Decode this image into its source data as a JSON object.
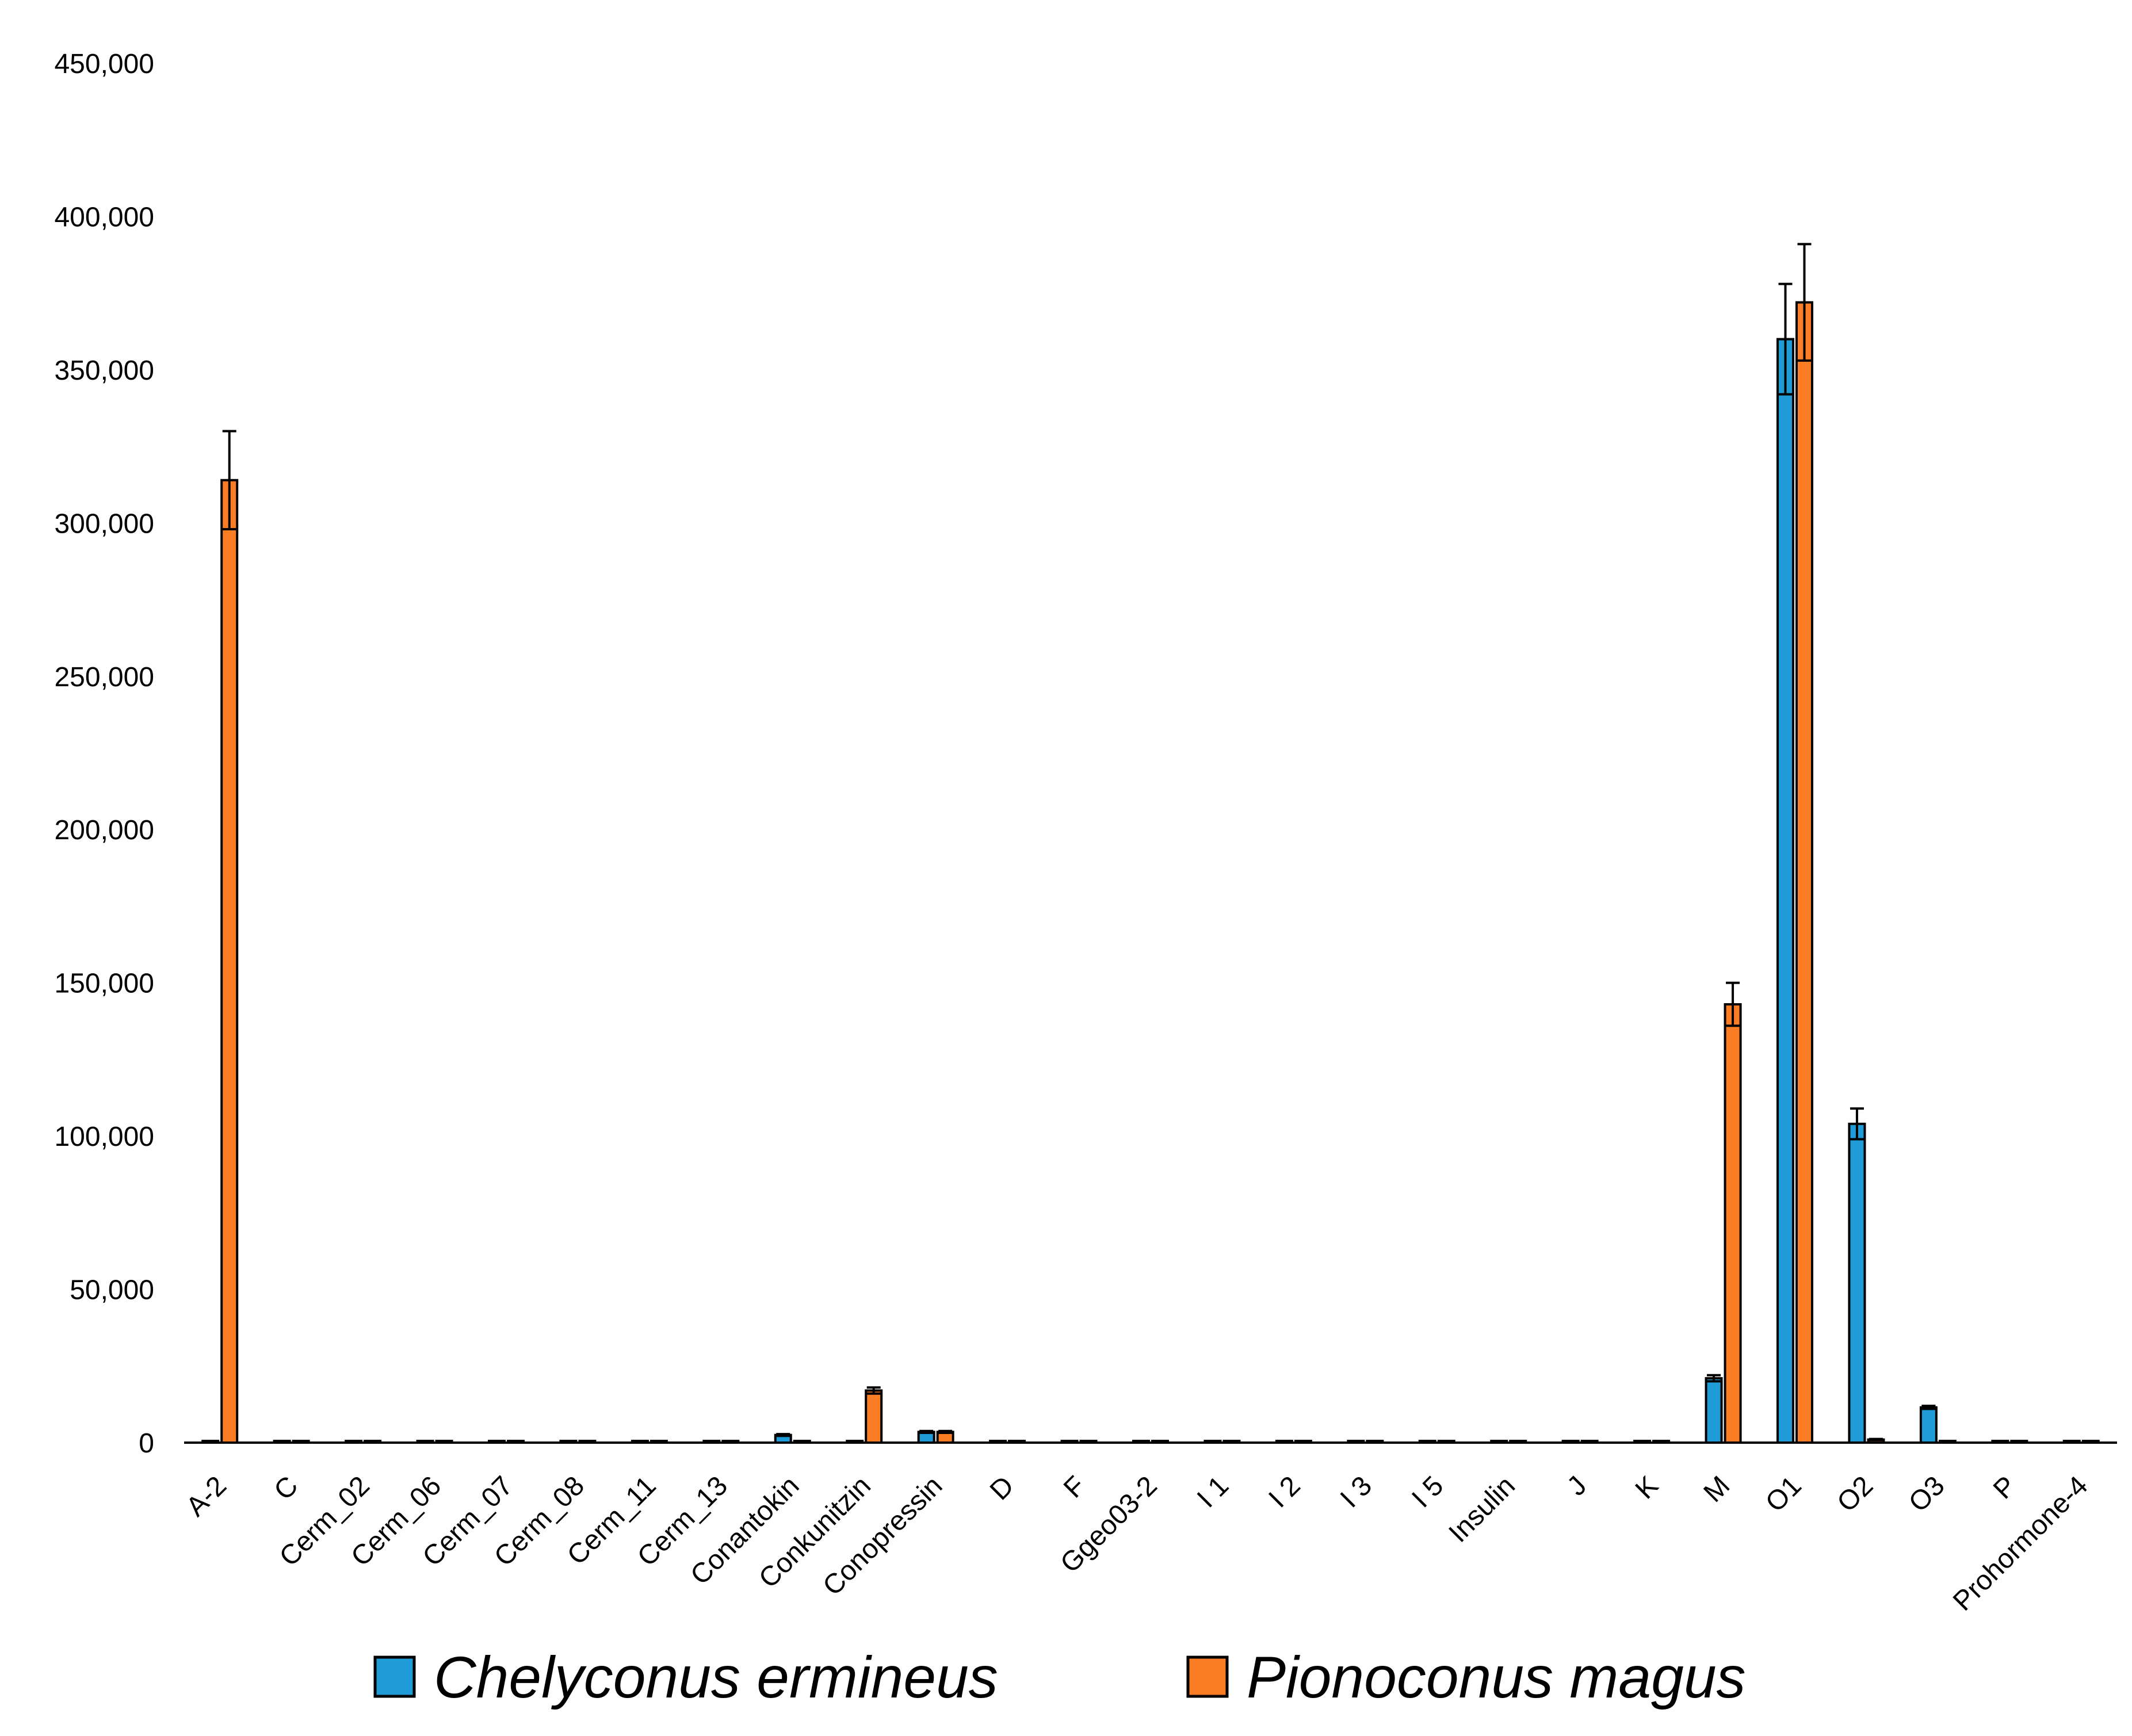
{
  "chart_data": {
    "type": "bar",
    "categories": [
      "A-2",
      "C",
      "Cerm_02",
      "Cerm_06",
      "Cerm_07",
      "Cerm_08",
      "Cerm_11",
      "Cerm_13",
      "Conantokin",
      "Conkunitzin",
      "Conopressin",
      "D",
      "F",
      "Ggeo03-2",
      "I 1",
      "I 2",
      "I 3",
      "I 5",
      "Insulin",
      "J",
      "K",
      "M",
      "O1",
      "O2",
      "O3",
      "P",
      "Prohormone-4"
    ],
    "series": [
      {
        "name": "Chelyconus ermineus",
        "color": "#1f9bd7",
        "values": [
          0,
          0,
          0,
          0,
          0,
          0,
          200,
          0,
          2500,
          0,
          3500,
          0,
          0,
          0,
          0,
          0,
          0,
          0,
          200,
          0,
          0,
          21000,
          360000,
          104000,
          11500,
          0,
          0
        ],
        "errors": [
          0,
          0,
          0,
          0,
          0,
          0,
          0,
          0,
          300,
          0,
          300,
          0,
          0,
          0,
          0,
          0,
          0,
          0,
          0,
          0,
          0,
          1000,
          18000,
          5000,
          500,
          0,
          0
        ]
      },
      {
        "name": "Pionoconus magus",
        "color": "#fb7d24",
        "values": [
          314000,
          0,
          0,
          0,
          0,
          0,
          0,
          0,
          0,
          17000,
          3500,
          0,
          0,
          0,
          0,
          0,
          0,
          0,
          0,
          0,
          0,
          143000,
          372000,
          1000,
          0,
          0,
          0
        ],
        "errors": [
          16000,
          0,
          0,
          0,
          0,
          0,
          0,
          0,
          0,
          1000,
          300,
          0,
          0,
          0,
          0,
          0,
          0,
          0,
          0,
          0,
          0,
          7000,
          19000,
          200,
          0,
          0,
          0
        ]
      }
    ],
    "y_ticks": [
      "0",
      "50,000",
      "100,000",
      "150,000",
      "200,000",
      "250,000",
      "300,000",
      "350,000",
      "400,000",
      "450,000"
    ],
    "ylim": [
      0,
      450000
    ],
    "xlabel": "",
    "ylabel": "",
    "title": "",
    "legend_position": "bottom",
    "grid": false
  }
}
